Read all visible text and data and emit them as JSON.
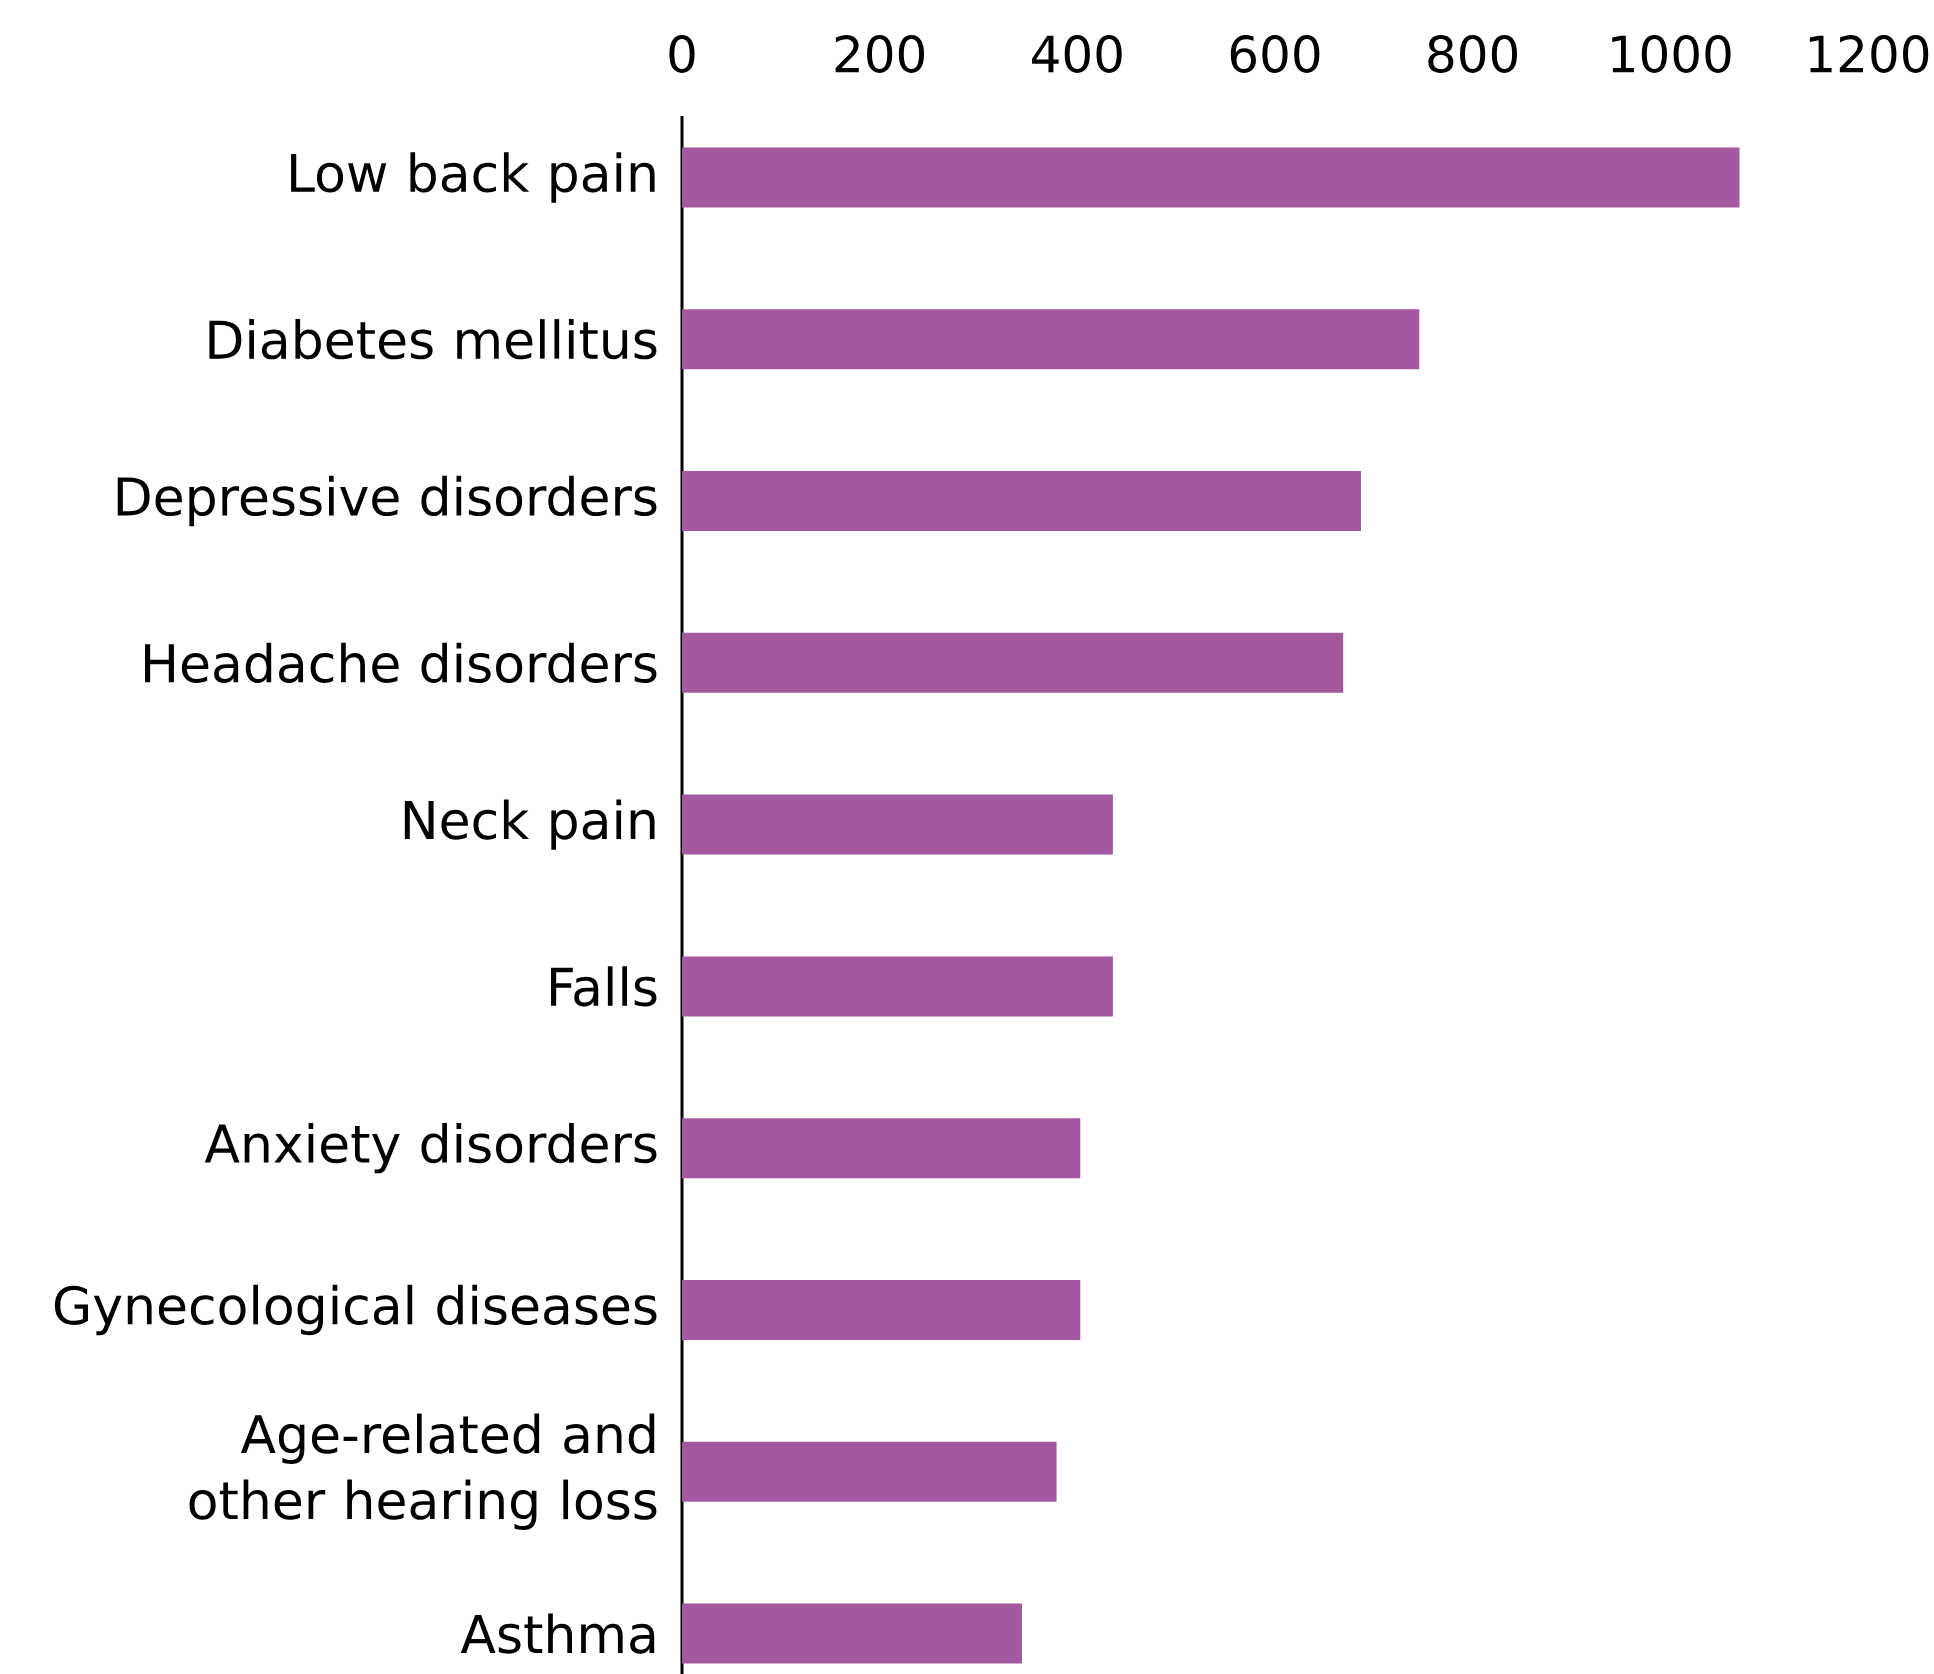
{
  "chart_data": {
    "type": "bar",
    "orientation": "horizontal",
    "categories": [
      "Low back pain",
      "Diabetes mellitus",
      "Depressive disorders",
      "Headache disorders",
      "Neck pain",
      "Falls",
      "Anxiety disorders",
      "Gynecological diseases",
      "Age-related and other hearing loss",
      "Asthma"
    ],
    "values": [
      1070,
      746,
      687,
      669,
      436,
      436,
      403,
      403,
      379,
      344
    ],
    "color": "#a358a0",
    "xlim": [
      0,
      1200
    ],
    "xticks": [
      0,
      200,
      400,
      600,
      800,
      1000,
      1200
    ]
  }
}
